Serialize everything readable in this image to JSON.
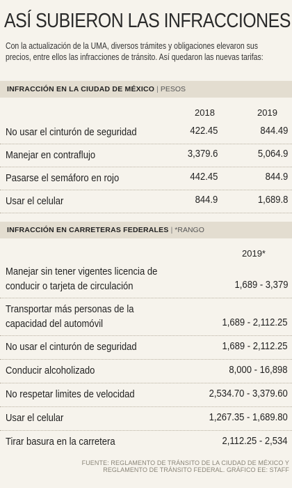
{
  "title": "ASÍ SUBIERON LAS INFRACCIONES",
  "intro": [
    "Con la actualización de la UMA, diversos trámites y obligaciones elevaron sus",
    "precios, entre ellos las infracciones de tránsito. Así quedaron las nuevas tarifas:"
  ],
  "cdmx": {
    "header": "INFRACCIÓN EN LA CIUDAD DE MÉXICO",
    "unit": "PESOS",
    "col_2018": "2018",
    "col_2019": "2019",
    "rows": [
      {
        "label": "No usar el cinturón de seguridad",
        "y2018": "422.45",
        "y2019": "844.49"
      },
      {
        "label": "Manejar en contraflujo",
        "y2018": "3,379.6",
        "y2019": "5,064.9"
      },
      {
        "label": "Pasarse el semáforo en rojo",
        "y2018": "442.45",
        "y2019": "844.9"
      },
      {
        "label": "Usar el celular",
        "y2018": "844.9",
        "y2019": "1,689.8"
      }
    ]
  },
  "federal": {
    "header": "INFRACCIÓN EN CARRETERAS FEDERALES",
    "unit": "*RANGO",
    "col_2019": "2019*",
    "rows": [
      {
        "label": [
          "Manejar sin tener vigentes licencia de",
          "conducir o tarjeta de circulación"
        ],
        "value": "1,689 - 3,379"
      },
      {
        "label": [
          "Transportar más personas de la",
          "capacidad del automóvil"
        ],
        "value": "1,689 - 2,112.25"
      },
      {
        "label": [
          "No usar el cinturón de seguridad"
        ],
        "value": "1,689 - 2,112.25"
      },
      {
        "label": [
          "Conducir alcoholizado"
        ],
        "value": "8,000 - 16,898"
      },
      {
        "label": [
          "No respetar limites de velocidad"
        ],
        "value": "2,534.70 - 3,379.60"
      },
      {
        "label": [
          "Usar el celular"
        ],
        "value": "1,267.35 - 1,689.80"
      },
      {
        "label": [
          "Tirar basura en la carretera"
        ],
        "value": "2,112.25 - 2,534"
      }
    ]
  },
  "footer": [
    "FUENTE: REGLAMENTO DE TRÁNSITO DE LA CIUDAD DE MÉXICO Y",
    "REGLAMENTO DE TRÁNSITO FEDERAL. GRÁFICO EE: STAFF"
  ]
}
